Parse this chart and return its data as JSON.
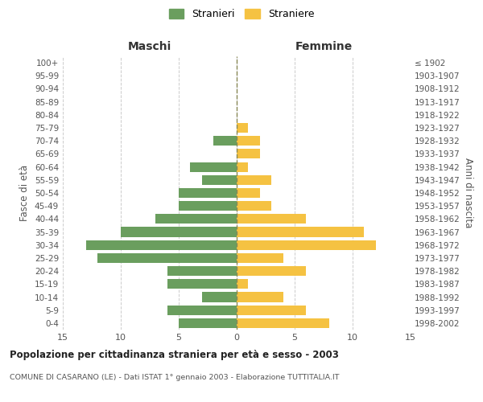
{
  "age_groups": [
    "0-4",
    "5-9",
    "10-14",
    "15-19",
    "20-24",
    "25-29",
    "30-34",
    "35-39",
    "40-44",
    "45-49",
    "50-54",
    "55-59",
    "60-64",
    "65-69",
    "70-74",
    "75-79",
    "80-84",
    "85-89",
    "90-94",
    "95-99",
    "100+"
  ],
  "birth_years": [
    "1998-2002",
    "1993-1997",
    "1988-1992",
    "1983-1987",
    "1978-1982",
    "1973-1977",
    "1968-1972",
    "1963-1967",
    "1958-1962",
    "1953-1957",
    "1948-1952",
    "1943-1947",
    "1938-1942",
    "1933-1937",
    "1928-1932",
    "1923-1927",
    "1918-1922",
    "1913-1917",
    "1908-1912",
    "1903-1907",
    "≤ 1902"
  ],
  "males": [
    5,
    6,
    3,
    6,
    6,
    12,
    13,
    10,
    7,
    5,
    5,
    3,
    4,
    0,
    2,
    0,
    0,
    0,
    0,
    0,
    0
  ],
  "females": [
    8,
    6,
    4,
    1,
    6,
    4,
    12,
    11,
    6,
    3,
    2,
    3,
    1,
    2,
    2,
    1,
    0,
    0,
    0,
    0,
    0
  ],
  "male_color": "#6a9e5e",
  "female_color": "#f5c242",
  "background_color": "#ffffff",
  "grid_color": "#cccccc",
  "title": "Popolazione per cittadinanza straniera per età e sesso - 2003",
  "subtitle": "COMUNE DI CASARANO (LE) - Dati ISTAT 1° gennaio 2003 - Elaborazione TUTTITALIA.IT",
  "xlabel_left": "Maschi",
  "xlabel_right": "Femmine",
  "ylabel_left": "Fasce di età",
  "ylabel_right": "Anni di nascita",
  "legend_male": "Stranieri",
  "legend_female": "Straniere",
  "xlim": 15,
  "bar_height": 0.75
}
